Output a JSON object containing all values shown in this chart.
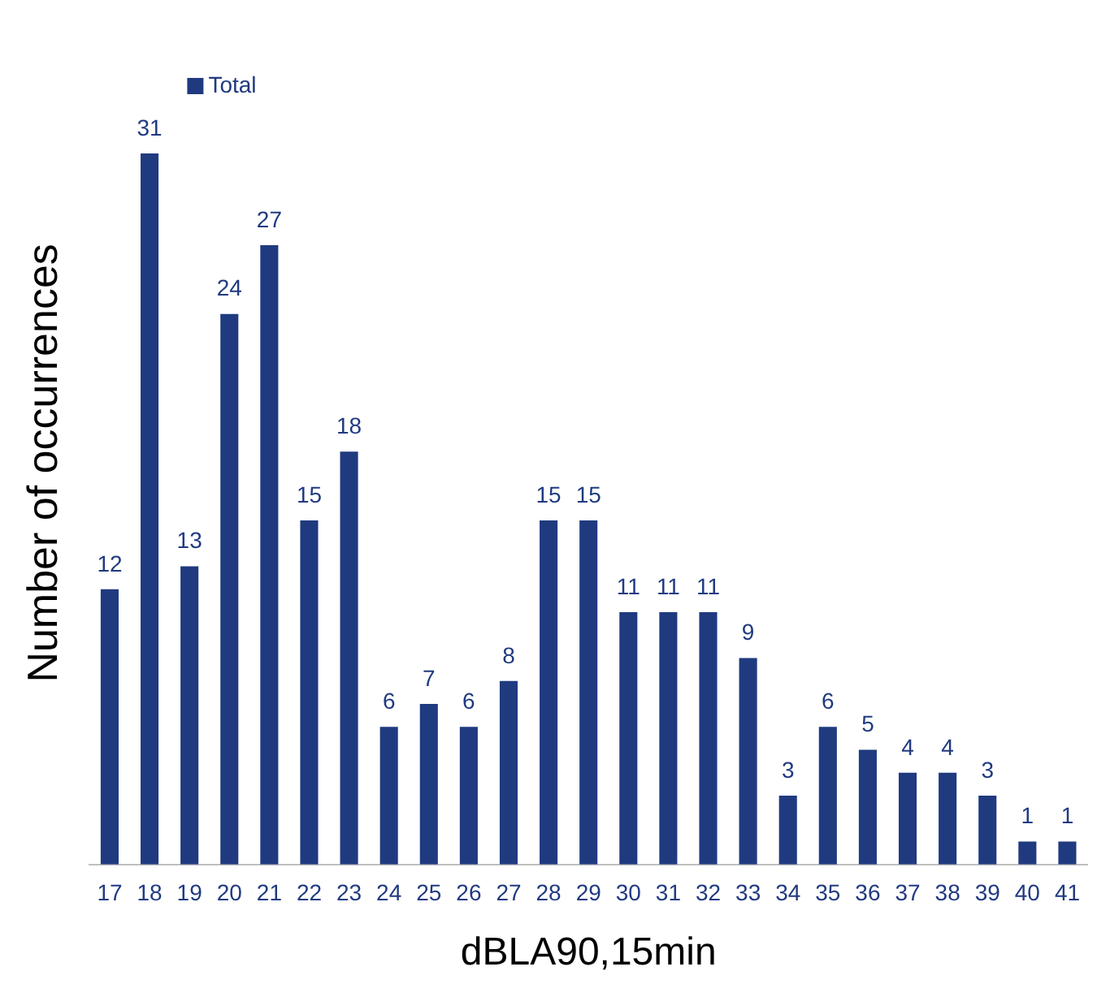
{
  "chart_data": {
    "type": "bar",
    "xlabel": "dBLA90,15min",
    "ylabel": "Number of occurrences",
    "categories": [
      "17",
      "18",
      "19",
      "20",
      "21",
      "22",
      "23",
      "24",
      "25",
      "26",
      "27",
      "28",
      "29",
      "30",
      "31",
      "32",
      "33",
      "34",
      "35",
      "36",
      "37",
      "38",
      "39",
      "40",
      "41"
    ],
    "series": [
      {
        "name": "Total",
        "color": "#203a80",
        "values": [
          12,
          31,
          13,
          24,
          27,
          15,
          18,
          6,
          7,
          6,
          8,
          15,
          15,
          11,
          11,
          11,
          9,
          3,
          6,
          5,
          4,
          4,
          3,
          1,
          1
        ]
      }
    ],
    "data_labels": true,
    "legend": "top left",
    "grid": false
  }
}
